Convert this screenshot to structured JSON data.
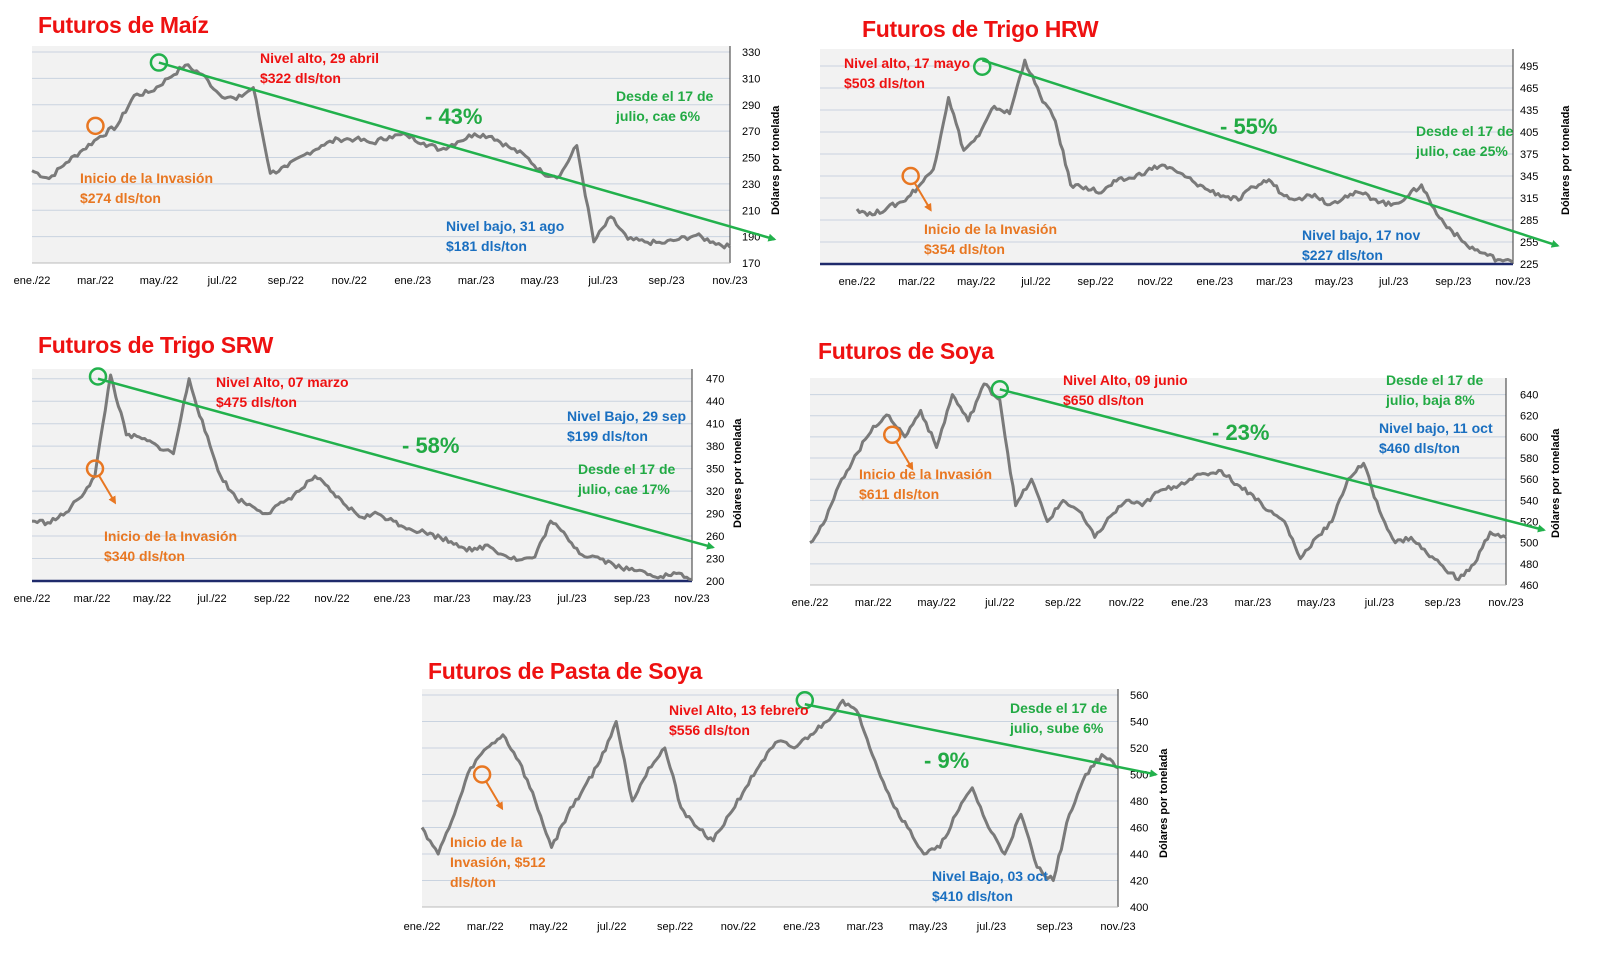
{
  "colors": {
    "line": "#7a7a7a",
    "arrow": "#22b14c",
    "high": "#ee1111",
    "invasion": "#e87722",
    "low": "#1a6fc0",
    "plot_bg": "#f2f2f2",
    "grid": "#c9d3e0",
    "axis_dark": "#1f2a6b"
  },
  "chart_data": [
    {
      "type": "line",
      "title": "Futuros de Maíz",
      "ylabel": "Dólares por tonelada",
      "ylim": [
        170,
        330
      ],
      "yticks": [
        170,
        190,
        210,
        230,
        250,
        270,
        290,
        310,
        330
      ],
      "xlabels": [
        "ene./22",
        "mar./22",
        "may./22",
        "jul./22",
        "sep./22",
        "nov./22",
        "ene./23",
        "mar./23",
        "may./23",
        "jul./23",
        "sep./23",
        "nov./23"
      ],
      "series": [
        {
          "values": [
            240,
            234,
            246,
            256,
            266,
            274,
            297,
            300,
            310,
            320,
            313,
            298,
            294,
            303,
            238,
            243,
            252,
            259,
            264,
            264,
            261,
            266,
            267,
            261,
            256,
            262,
            268,
            266,
            258,
            251,
            238,
            236,
            259,
            186,
            205,
            188,
            186,
            185,
            188,
            191,
            186,
            182
          ]
        }
      ],
      "trend": {
        "from": [
          2.0,
          322
        ],
        "to": [
          11.7,
          188
        ]
      },
      "high": {
        "x": 2.0,
        "y": 322,
        "label": "Nivel alto, 29 abril",
        "value": "$322 dls/ton"
      },
      "invasion": {
        "x": 1.0,
        "y": 274,
        "label": "Inicio de la Invasión",
        "value": "$274 dls/ton"
      },
      "low": {
        "label": "Nivel bajo, 31 ago",
        "value": "$181 dls/ton"
      },
      "change": "- 43%",
      "since": {
        "line1": "Desde el 17 de",
        "line2": "julio, cae 6%"
      }
    },
    {
      "type": "line",
      "title": "Futuros de Trigo HRW",
      "ylabel": "Dólares por tonelada",
      "ylim": [
        225,
        510
      ],
      "yticks": [
        225,
        255,
        285,
        315,
        345,
        375,
        405,
        435,
        465,
        495
      ],
      "xlabels": [
        "ene./22",
        "mar./22",
        "may./22",
        "jul./22",
        "sep./22",
        "nov./22",
        "ene./23",
        "mar./23",
        "may./23",
        "jul./23",
        "sep./23",
        "nov./23"
      ],
      "series": [
        {
          "values": [
            300,
            292,
            302,
            310,
            330,
            354,
            452,
            380,
            400,
            440,
            430,
            503,
            455,
            420,
            333,
            330,
            322,
            338,
            342,
            352,
            360,
            350,
            338,
            326,
            318,
            312,
            330,
            340,
            318,
            315,
            320,
            306,
            318,
            322,
            313,
            305,
            316,
            333,
            293,
            270,
            250,
            240,
            231,
            227
          ]
        }
      ],
      "trend": {
        "from": [
          2.1,
          503
        ],
        "to": [
          11.75,
          250
        ]
      },
      "high": {
        "x": 2.1,
        "y": 494,
        "label": "Nivel alto, 17 mayo",
        "value": "$503 dls/ton"
      },
      "invasion": {
        "x": 0.9,
        "y": 345,
        "label": "Inicio de la Invasión",
        "value": "$354 dls/ton"
      },
      "low": {
        "label": "Nivel bajo, 17 nov",
        "value": "$227 dls/ton"
      },
      "change": "- 55%",
      "since": {
        "line1": "Desde el 17 de",
        "line2": "julio, cae 25%"
      }
    },
    {
      "type": "line",
      "title": "Futuros de Trigo SRW",
      "ylabel": "Dólares por tonelada",
      "ylim": [
        200,
        475
      ],
      "yticks": [
        200,
        230,
        260,
        290,
        320,
        350,
        380,
        410,
        440,
        470
      ],
      "xlabels": [
        "ene./22",
        "mar./22",
        "may./22",
        "jul./22",
        "sep./22",
        "nov./22",
        "ene./23",
        "mar./23",
        "may./23",
        "jul./23",
        "sep./23",
        "nov./23"
      ],
      "series": [
        {
          "values": [
            280,
            278,
            288,
            310,
            340,
            475,
            395,
            390,
            380,
            370,
            470,
            400,
            340,
            310,
            300,
            290,
            305,
            320,
            340,
            320,
            300,
            285,
            290,
            280,
            270,
            265,
            258,
            250,
            240,
            248,
            235,
            228,
            232,
            280,
            260,
            235,
            232,
            222,
            215,
            212,
            206,
            210,
            202
          ]
        }
      ],
      "trend": {
        "from": [
          1.1,
          470
        ],
        "to": [
          11.35,
          245
        ]
      },
      "high": {
        "x": 1.1,
        "y": 473,
        "label": "Nivel Alto, 07 marzo",
        "value": "$475 dls/ton"
      },
      "invasion": {
        "x": 1.05,
        "y": 350,
        "label": "Inicio de la Invasión",
        "value": "$340 dls/ton"
      },
      "low": {
        "label": "Nivel Bajo, 29 sep",
        "value": "$199 dls/ton"
      },
      "change": "- 58%",
      "since": {
        "line1": "Desde el 17 de",
        "line2": "julio, cae 17%"
      }
    },
    {
      "type": "line",
      "title": "Futuros de Soya",
      "ylabel": "Dólares por tonelada",
      "ylim": [
        460,
        650
      ],
      "yticks": [
        460,
        480,
        500,
        520,
        540,
        560,
        580,
        600,
        620,
        640
      ],
      "xlabels": [
        "ene./22",
        "mar./22",
        "may./22",
        "jul./22",
        "sep./22",
        "nov./22",
        "ene./23",
        "mar./23",
        "may./23",
        "jul./23",
        "sep./23",
        "nov./23"
      ],
      "series": [
        {
          "values": [
            500,
            522,
            560,
            585,
            610,
            620,
            600,
            625,
            590,
            640,
            615,
            650,
            635,
            535,
            560,
            520,
            540,
            530,
            505,
            525,
            540,
            535,
            548,
            553,
            560,
            565,
            568,
            555,
            545,
            530,
            520,
            485,
            505,
            520,
            560,
            575,
            530,
            500,
            505,
            490,
            478,
            465,
            480,
            510,
            505
          ]
        }
      ],
      "trend": {
        "from": [
          3.0,
          645
        ],
        "to": [
          11.6,
          512
        ]
      },
      "high": {
        "x": 3.0,
        "y": 645,
        "label": "Nivel Alto, 09 junio",
        "value": "$650 dls/ton"
      },
      "invasion": {
        "x": 1.3,
        "y": 602,
        "label": "Inicio de la Invasión",
        "value": "$611 dls/ton"
      },
      "low": {
        "label": "Nivel bajo, 11 oct",
        "value": "$460 dls/ton"
      },
      "change": "- 23%",
      "since": {
        "line1": "Desde el 17 de",
        "line2": "julio, baja 8%"
      }
    },
    {
      "type": "line",
      "title": "Futuros de Pasta de Soya",
      "ylabel": "Dólares por tonelada",
      "ylim": [
        400,
        560
      ],
      "yticks": [
        400,
        420,
        440,
        460,
        480,
        500,
        520,
        540,
        560
      ],
      "xlabels": [
        "ene./22",
        "mar./22",
        "may./22",
        "jul./22",
        "sep./22",
        "nov./22",
        "ene./23",
        "mar./23",
        "may./23",
        "jul./23",
        "sep./23",
        "nov./23"
      ],
      "series": [
        {
          "values": [
            460,
            440,
            470,
            505,
            520,
            530,
            510,
            480,
            445,
            470,
            490,
            510,
            540,
            480,
            505,
            520,
            475,
            460,
            450,
            470,
            490,
            510,
            525,
            520,
            530,
            540,
            556,
            545,
            510,
            480,
            460,
            440,
            445,
            470,
            490,
            460,
            440,
            470,
            430,
            420,
            470,
            500,
            515,
            505
          ]
        }
      ],
      "trend": {
        "from": [
          6.05,
          553
        ],
        "to": [
          11.6,
          500
        ]
      },
      "high": {
        "x": 6.05,
        "y": 556,
        "label": "Nivel Alto, 13 febrero",
        "value": "$556 dls/ton"
      },
      "invasion": {
        "x": 0.95,
        "y": 500,
        "label": "Inicio de la Invasión, $512 dls/ton",
        "value": ""
      },
      "low": {
        "label": "Nivel Bajo, 03 oct",
        "value": "$410 dls/ton"
      },
      "change": "- 9%",
      "since": {
        "line1": "Desde el 17 de",
        "line2": "julio, sube 6%"
      }
    }
  ]
}
